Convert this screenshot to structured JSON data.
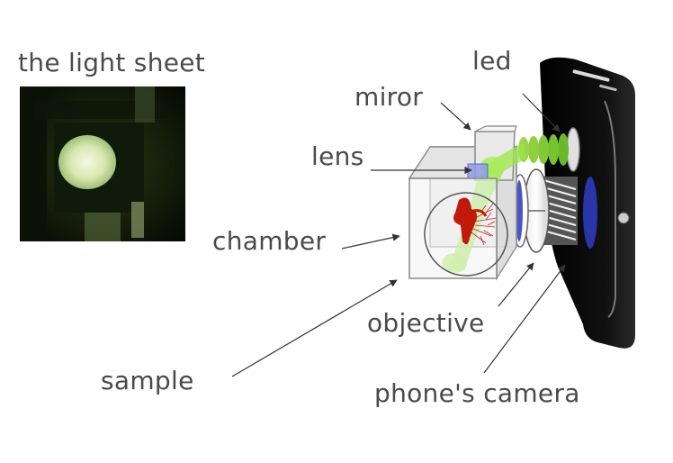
{
  "figure": {
    "inset_title": "the light sheet",
    "labels": {
      "led": "led",
      "miror": "miror",
      "lens": "lens",
      "chamber": "chamber",
      "objective": "objective",
      "sample": "sample",
      "phones_camera": "phone's camera"
    }
  },
  "colors": {
    "text": "#4a4a4a",
    "light": "#9be64a",
    "led_green": "#6ab92b",
    "lens_blue": "#4a55c8",
    "phone_body": "#0a0a0a",
    "sample_red": "#c01a0a"
  }
}
